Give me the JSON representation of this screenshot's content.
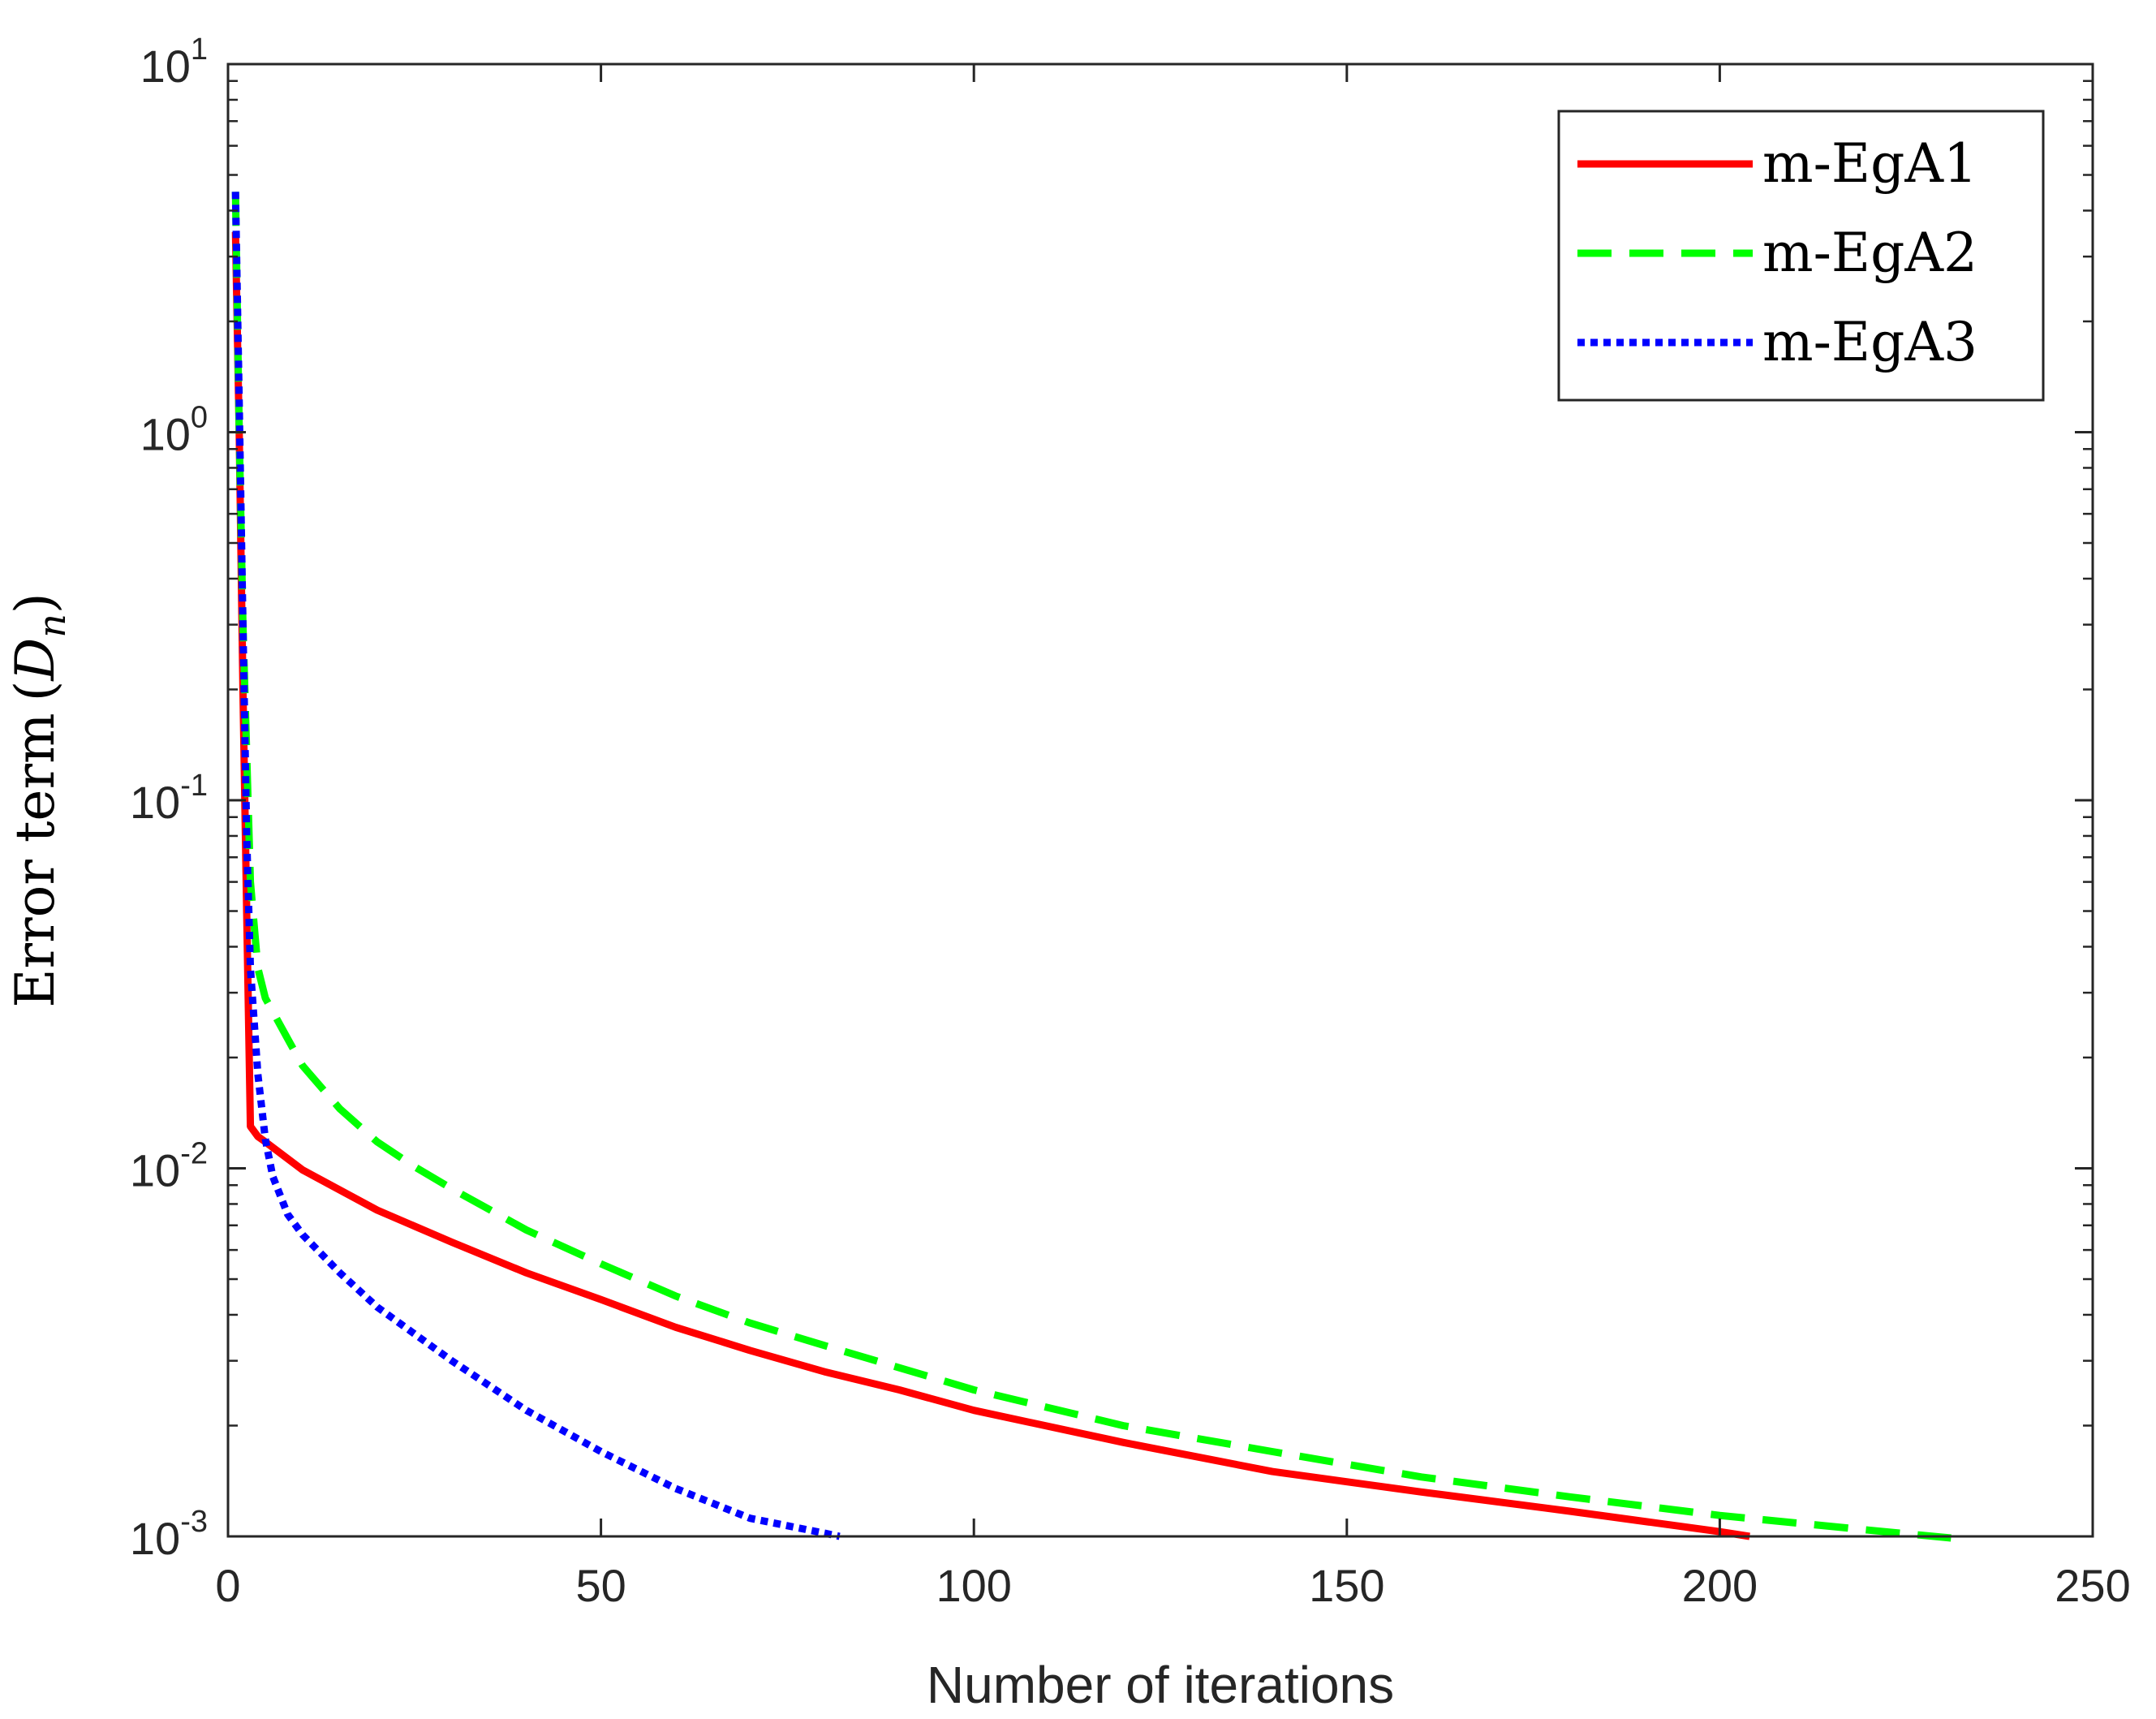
{
  "chart_data": {
    "type": "line",
    "title": "",
    "xlabel": "Number of iterations",
    "ylabel": "Error term",
    "ylabel_symbol": "D",
    "ylabel_subscript": "n",
    "xlim": [
      0,
      250
    ],
    "ylim": [
      0.001,
      10
    ],
    "yscale": "log",
    "grid": false,
    "legend_position": "top-right",
    "x_ticks": [
      "0",
      "50",
      "100",
      "150",
      "200",
      "250"
    ],
    "y_ticks": [
      {
        "base": "10",
        "exp": "-3"
      },
      {
        "base": "10",
        "exp": "-2"
      },
      {
        "base": "10",
        "exp": "-1"
      },
      {
        "base": "10",
        "exp": "0"
      },
      {
        "base": "10",
        "exp": "1"
      }
    ],
    "series": [
      {
        "name": "m-EgA1",
        "color": "#ff0000",
        "dash": "solid",
        "x": [
          1,
          1.5,
          2,
          2.5,
          3,
          4,
          5,
          10,
          20,
          30,
          40,
          50,
          60,
          70,
          80,
          90,
          100,
          120,
          140,
          160,
          180,
          200,
          204
        ],
        "y": [
          3.5,
          1.0,
          0.2,
          0.05,
          0.013,
          0.0122,
          0.0118,
          0.0099,
          0.0077,
          0.0063,
          0.0052,
          0.0044,
          0.0037,
          0.0032,
          0.0028,
          0.0025,
          0.0022,
          0.0018,
          0.0015,
          0.00132,
          0.00117,
          0.00103,
          0.001
        ]
      },
      {
        "name": "m-EgA2",
        "color": "#00ff00",
        "dash": "dashed",
        "x": [
          1,
          1.5,
          2,
          3,
          4,
          5,
          8,
          10,
          15,
          20,
          25,
          30,
          40,
          50,
          60,
          70,
          80,
          100,
          120,
          140,
          160,
          180,
          200,
          220,
          231
        ],
        "y": [
          4.5,
          1.0,
          0.3,
          0.06,
          0.035,
          0.029,
          0.0225,
          0.019,
          0.0145,
          0.0118,
          0.0101,
          0.0088,
          0.0068,
          0.0055,
          0.0045,
          0.0038,
          0.0033,
          0.0025,
          0.002,
          0.0017,
          0.00145,
          0.00128,
          0.00114,
          0.00104,
          0.00099
        ]
      },
      {
        "name": "m-EgA3",
        "color": "#0000ff",
        "dash": "dotted",
        "x": [
          1,
          1.5,
          2,
          2.5,
          3,
          4,
          5,
          6,
          8,
          10,
          15,
          20,
          30,
          40,
          50,
          60,
          70,
          80,
          82
        ],
        "y": [
          4.5,
          1.2,
          0.3,
          0.08,
          0.035,
          0.018,
          0.012,
          0.0095,
          0.0075,
          0.0066,
          0.0052,
          0.0042,
          0.003,
          0.0022,
          0.0017,
          0.00135,
          0.00112,
          0.00102,
          0.001
        ]
      }
    ]
  }
}
